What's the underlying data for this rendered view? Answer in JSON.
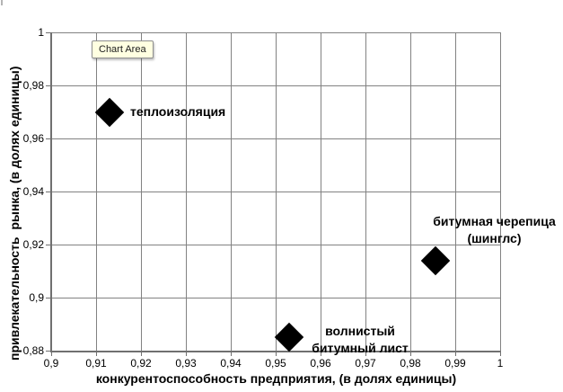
{
  "tooltip": {
    "label": "Chart Area"
  },
  "colors": {
    "grid": "#828282",
    "axis": "#707070",
    "marker": "#000000",
    "tooltip_bg": "#ffffe1",
    "tooltip_border": "#8f8f8f",
    "text": "#000000"
  },
  "chart_data": {
    "type": "scatter",
    "title": "",
    "xlabel": "конкурентоспособность предприятия, (в долях единицы)",
    "ylabel": "привлекательность  рынка, (в долях единицы)",
    "xlim": [
      0.9,
      1
    ],
    "ylim": [
      0.88,
      1
    ],
    "x_ticks": [
      "0,9",
      "0,91",
      "0,92",
      "0,93",
      "0,94",
      "0,95",
      "0,96",
      "0,97",
      "0,98",
      "0,99",
      "1"
    ],
    "y_ticks": [
      "1",
      "0,98",
      "0,96",
      "0,94",
      "0,92",
      "0,9",
      "0,88"
    ],
    "grid": true,
    "legend": "none",
    "marker": {
      "shape": "diamond",
      "color": "#000000"
    },
    "points": [
      {
        "name": "теплоизоляция",
        "x": 0.913,
        "y": 0.97,
        "label_lines": [
          "теплоизоляция"
        ]
      },
      {
        "name": "волнистый битумный лист",
        "x": 0.953,
        "y": 0.885,
        "label_lines": [
          "волнистый",
          "битумный лист"
        ]
      },
      {
        "name": "битумная черепица (шинглс)",
        "x": 0.9855,
        "y": 0.914,
        "label_lines": [
          "битумная черепица",
          "(шинглс)"
        ]
      }
    ]
  }
}
